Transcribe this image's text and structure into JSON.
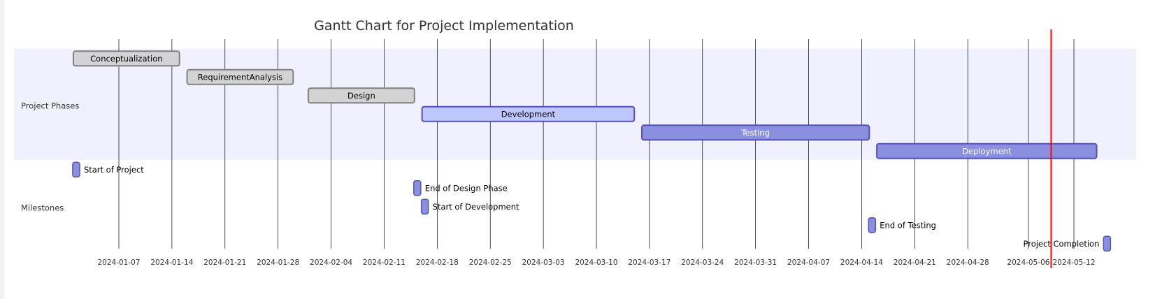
{
  "chart_data": {
    "type": "gantt",
    "title": "Gantt Chart for Project Implementation",
    "today": "2024-05-09",
    "x_ticks": [
      "2024-01-07",
      "2024-01-14",
      "2024-01-21",
      "2024-01-28",
      "2024-02-04",
      "2024-02-11",
      "2024-02-18",
      "2024-02-25",
      "2024-03-03",
      "2024-03-10",
      "2024-03-17",
      "2024-03-24",
      "2024-03-31",
      "2024-04-07",
      "2024-04-14",
      "2024-04-21",
      "2024-04-28",
      "2024-05-06",
      "2024-05-12"
    ],
    "sections": [
      {
        "name": "Project Phases",
        "tasks": [
          {
            "name": "Conceptualization",
            "start": "2024-01-01",
            "end": "2024-01-15",
            "status": "done"
          },
          {
            "name": "RequirementAnalysis",
            "start": "2024-01-16",
            "end": "2024-01-30",
            "status": "done"
          },
          {
            "name": "Design",
            "start": "2024-02-01",
            "end": "2024-02-15",
            "status": "done"
          },
          {
            "name": "Development",
            "start": "2024-02-16",
            "end": "2024-03-15",
            "status": "active"
          },
          {
            "name": "Testing",
            "start": "2024-03-16",
            "end": "2024-04-15",
            "status": "planned"
          },
          {
            "name": "Deployment",
            "start": "2024-04-16",
            "end": "2024-05-15",
            "status": "planned"
          }
        ]
      },
      {
        "name": "Milestones",
        "tasks": [
          {
            "name": "Start of Project",
            "date": "2024-01-01",
            "milestone": true
          },
          {
            "name": "End of Design Phase",
            "date": "2024-02-15",
            "milestone": true
          },
          {
            "name": "Start of Development",
            "date": "2024-02-16",
            "milestone": true
          },
          {
            "name": "End of Testing",
            "date": "2024-04-15",
            "milestone": true
          },
          {
            "name": "Project Completion",
            "date": "2024-05-16",
            "milestone": true
          }
        ]
      }
    ]
  },
  "colors": {
    "done_fill": "#d3d3d3",
    "done_stroke": "#808080",
    "active_fill": "#bfc7ff",
    "active_stroke": "#534fbc",
    "planned_fill": "#8a90dd",
    "planned_stroke": "#534fbc",
    "section_band": "#f0f0ff",
    "today_line": "#ff0000",
    "grid_line": "#000000"
  }
}
